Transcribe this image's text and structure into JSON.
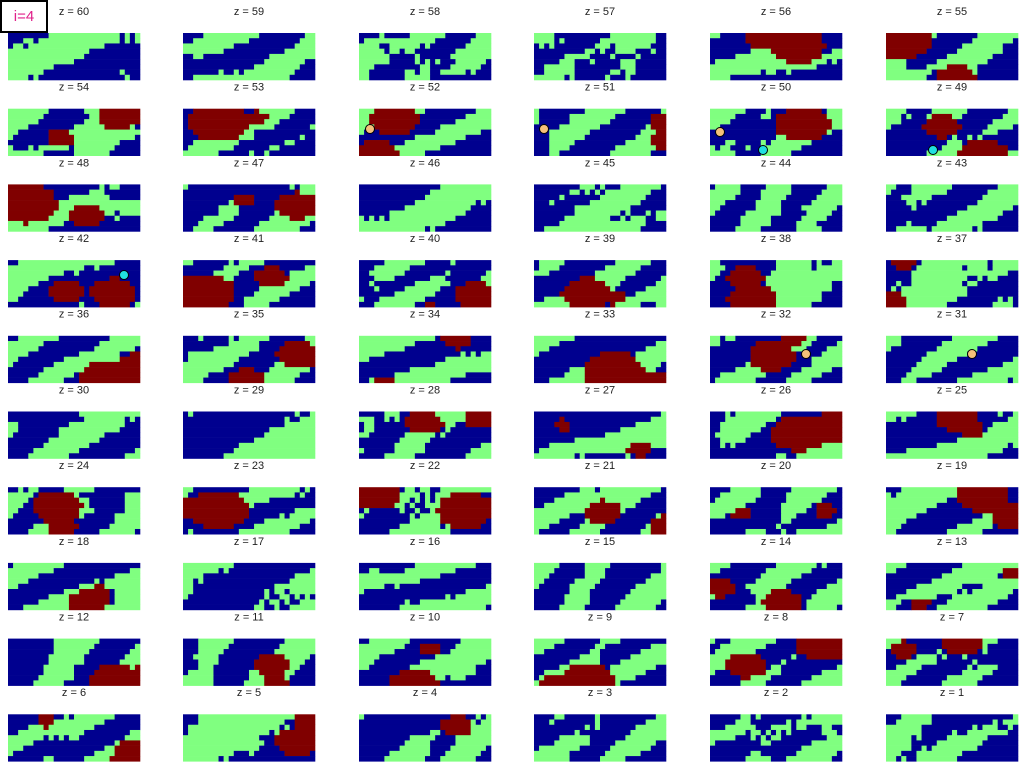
{
  "label": "i=4",
  "panels": [
    {
      "title": "z = 60"
    },
    {
      "title": "z = 59"
    },
    {
      "title": "z = 58"
    },
    {
      "title": "z = 57"
    },
    {
      "title": "z = 56"
    },
    {
      "title": "z = 55"
    },
    {
      "title": "z = 54"
    },
    {
      "title": "z = 53"
    },
    {
      "title": "z = 52"
    },
    {
      "title": "z = 51"
    },
    {
      "title": "z = 50"
    },
    {
      "title": "z = 49"
    },
    {
      "title": "z = 48"
    },
    {
      "title": "z = 47"
    },
    {
      "title": "z = 46"
    },
    {
      "title": "z = 45"
    },
    {
      "title": "z = 44"
    },
    {
      "title": "z = 43"
    },
    {
      "title": "z = 42"
    },
    {
      "title": "z = 41"
    },
    {
      "title": "z = 40"
    },
    {
      "title": "z = 39"
    },
    {
      "title": "z = 38"
    },
    {
      "title": "z = 37"
    },
    {
      "title": "z = 36"
    },
    {
      "title": "z = 35"
    },
    {
      "title": "z = 34"
    },
    {
      "title": "z = 33"
    },
    {
      "title": "z = 32"
    },
    {
      "title": "z = 31"
    },
    {
      "title": "z = 30"
    },
    {
      "title": "z = 29"
    },
    {
      "title": "z = 28"
    },
    {
      "title": "z = 27"
    },
    {
      "title": "z = 26"
    },
    {
      "title": "z = 25"
    },
    {
      "title": "z = 24"
    },
    {
      "title": "z = 23"
    },
    {
      "title": "z = 22"
    },
    {
      "title": "z = 21"
    },
    {
      "title": "z = 20"
    },
    {
      "title": "z = 19"
    },
    {
      "title": "z = 18"
    },
    {
      "title": "z = 17"
    },
    {
      "title": "z = 16"
    },
    {
      "title": "z = 15"
    },
    {
      "title": "z = 14"
    },
    {
      "title": "z = 13"
    },
    {
      "title": "z = 12"
    },
    {
      "title": "z = 11"
    },
    {
      "title": "z = 10"
    },
    {
      "title": "z = 9"
    },
    {
      "title": "z = 8"
    },
    {
      "title": "z = 7"
    },
    {
      "title": "z = 6"
    },
    {
      "title": "z = 5"
    },
    {
      "title": "z = 4"
    },
    {
      "title": "z = 3"
    },
    {
      "title": "z = 2"
    },
    {
      "title": "z = 1"
    }
  ]
}
